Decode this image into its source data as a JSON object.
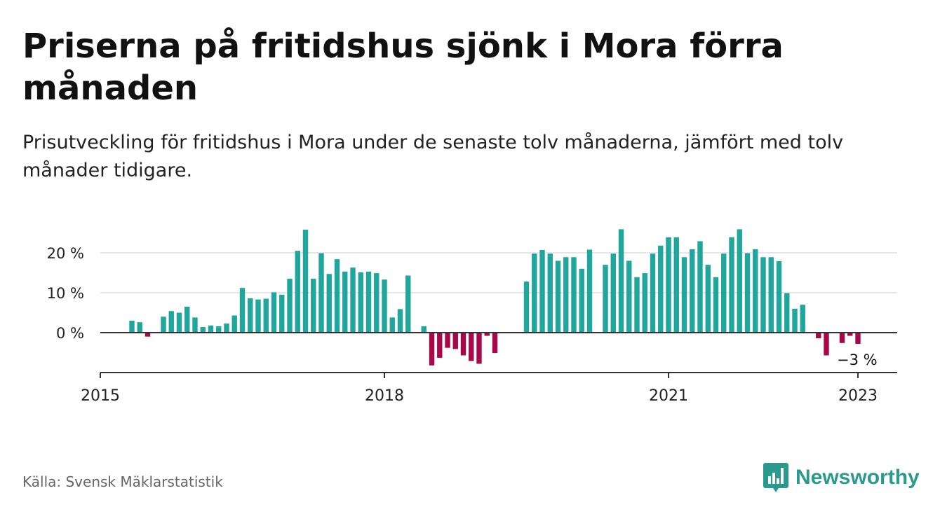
{
  "title": "Priserna på fritidshus sjönk i Mora förra månaden",
  "subtitle": "Prisutveckling för fritidshus i Mora under de senaste tolv månaderna, jämfört med tolv månader tidigare.",
  "source": "Källa: Svensk Mäklarstatistik",
  "brand": {
    "name": "Newsworthy",
    "icon": "newsworthy-logo-icon"
  },
  "colors": {
    "positive": "#20a69c",
    "negative": "#a8084a",
    "grid": "#dddddd",
    "axis": "#333333"
  },
  "chart_data": {
    "type": "bar",
    "x_unit": "month",
    "x_ticks": [
      "2015",
      "2018",
      "2021",
      "2023"
    ],
    "y_ticks": [
      "0 %",
      "10 %",
      "20 %"
    ],
    "ylim": [
      -10,
      27
    ],
    "grid": true,
    "annotation": {
      "text": "−3 %",
      "x": "2023-01"
    },
    "series": [
      {
        "values": [
          [
            "2015-05",
            3
          ],
          [
            "2015-06",
            2.6
          ],
          [
            "2015-07",
            -1
          ],
          [
            "2015-09",
            4
          ],
          [
            "2015-10",
            5.4
          ],
          [
            "2015-11",
            5
          ],
          [
            "2015-12",
            6.5
          ],
          [
            "2016-01",
            3.8
          ],
          [
            "2016-02",
            1.4
          ],
          [
            "2016-03",
            1.8
          ],
          [
            "2016-04",
            1.6
          ],
          [
            "2016-05",
            2.3
          ],
          [
            "2016-06",
            4.3
          ],
          [
            "2016-07",
            11.2
          ],
          [
            "2016-08",
            8.6
          ],
          [
            "2016-09",
            8.3
          ],
          [
            "2016-10",
            8.5
          ],
          [
            "2016-11",
            10.1
          ],
          [
            "2016-12",
            9.5
          ],
          [
            "2017-01",
            13.5
          ],
          [
            "2017-02",
            20.5
          ],
          [
            "2017-03",
            25.8
          ],
          [
            "2017-04",
            13.5
          ],
          [
            "2017-05",
            19.9
          ],
          [
            "2017-06",
            14.7
          ],
          [
            "2017-07",
            18.4
          ],
          [
            "2017-08",
            15.3
          ],
          [
            "2017-09",
            16.3
          ],
          [
            "2017-10",
            15.1
          ],
          [
            "2017-11",
            15.3
          ],
          [
            "2017-12",
            14.9
          ],
          [
            "2018-01",
            13.3
          ],
          [
            "2018-02",
            3.8
          ],
          [
            "2018-03",
            5.9
          ],
          [
            "2018-04",
            14.3
          ],
          [
            "2018-06",
            1.6
          ],
          [
            "2018-07",
            -8.2
          ],
          [
            "2018-08",
            -6.3
          ],
          [
            "2018-09",
            -3.8
          ],
          [
            "2018-10",
            -4.1
          ],
          [
            "2018-11",
            -5.7
          ],
          [
            "2018-12",
            -7.1
          ],
          [
            "2019-01",
            -7.8
          ],
          [
            "2019-02",
            -0.8
          ],
          [
            "2019-03",
            -5.1
          ],
          [
            "2019-07",
            12.8
          ],
          [
            "2019-08",
            19.8
          ],
          [
            "2019-09",
            20.7
          ],
          [
            "2019-10",
            19.8
          ],
          [
            "2019-11",
            18
          ],
          [
            "2019-12",
            18.9
          ],
          [
            "2020-01",
            18.9
          ],
          [
            "2020-02",
            16
          ],
          [
            "2020-03",
            20.8
          ],
          [
            "2020-05",
            17
          ],
          [
            "2020-06",
            19.8
          ],
          [
            "2020-07",
            25.9
          ],
          [
            "2020-08",
            18
          ],
          [
            "2020-09",
            13.9
          ],
          [
            "2020-10",
            14.9
          ],
          [
            "2020-11",
            19.8
          ],
          [
            "2020-12",
            21.8
          ],
          [
            "2021-01",
            23.9
          ],
          [
            "2021-02",
            23.9
          ],
          [
            "2021-03",
            18.9
          ],
          [
            "2021-04",
            20.9
          ],
          [
            "2021-05",
            22.9
          ],
          [
            "2021-06",
            17
          ],
          [
            "2021-07",
            13.9
          ],
          [
            "2021-08",
            19.8
          ],
          [
            "2021-09",
            23.9
          ],
          [
            "2021-10",
            25.9
          ],
          [
            "2021-11",
            19.9
          ],
          [
            "2021-12",
            20.9
          ],
          [
            "2022-01",
            18.9
          ],
          [
            "2022-02",
            18.9
          ],
          [
            "2022-03",
            17.9
          ],
          [
            "2022-04",
            9.9
          ],
          [
            "2022-05",
            6
          ],
          [
            "2022-06",
            7
          ],
          [
            "2022-08",
            -1.4
          ],
          [
            "2022-09",
            -5.7
          ],
          [
            "2022-11",
            -2.6
          ],
          [
            "2022-12",
            -0.8
          ],
          [
            "2023-01",
            -2.8
          ]
        ]
      }
    ]
  }
}
